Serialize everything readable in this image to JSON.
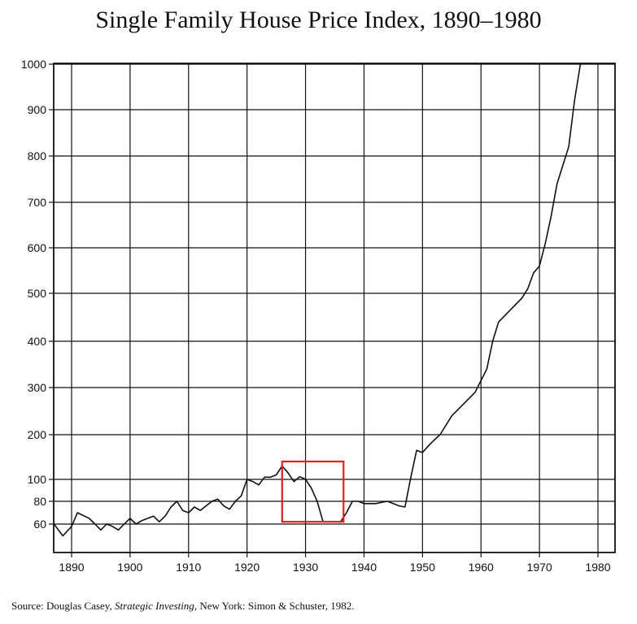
{
  "title": "Single Family House Price Index, 1890–1980",
  "source": {
    "prefix": "Source:  Douglas Casey, ",
    "book": "Strategic Investing",
    "suffix": ", New York: Simon & Schuster, 1982."
  },
  "chart_data": {
    "type": "line",
    "title": "Single Family House Price Index, 1890–1980",
    "xlabel": "",
    "ylabel": "",
    "xlim": [
      1887,
      1982
    ],
    "x_ticks": [
      1890,
      1900,
      1910,
      1920,
      1930,
      1940,
      1950,
      1960,
      1970,
      1980
    ],
    "y_ticks": [
      60,
      80,
      100,
      200,
      300,
      400,
      500,
      600,
      700,
      800,
      900,
      1000
    ],
    "y_scale": "nonuniform (compressed below 100)",
    "grid": true,
    "legend": "none",
    "highlight_box": {
      "x_range": [
        1926,
        1936.5
      ],
      "y_range": [
        62,
        140
      ],
      "color": "#e02020"
    },
    "series": [
      {
        "x": [
          1887,
          1888.5,
          1890,
          1891,
          1893,
          1894,
          1895,
          1896,
          1897,
          1898,
          1899,
          1900,
          1901,
          1902,
          1904,
          1905,
          1906,
          1907,
          1908,
          1909,
          1910,
          1911,
          1912,
          1913,
          1914,
          1915,
          1916,
          1917,
          1918,
          1919,
          1920,
          1921,
          1922,
          1923,
          1924,
          1925,
          1926,
          1927,
          1928,
          1929,
          1930,
          1931,
          1932,
          1933,
          1934,
          1935,
          1936,
          1937,
          1938,
          1939,
          1940,
          1941,
          1942,
          1943,
          1944,
          1945,
          1946,
          1947,
          1948,
          1949,
          1950,
          1951,
          1952,
          1953,
          1955,
          1957,
          1959,
          1960,
          1961,
          1962,
          1963,
          1965,
          1967,
          1968,
          1969,
          1970,
          1971,
          1972,
          1973,
          1974,
          1975,
          1976,
          1977,
          1978
        ],
        "values": [
          60,
          50,
          58,
          70,
          65,
          60,
          55,
          60,
          58,
          55,
          60,
          65,
          60,
          63,
          67,
          62,
          67,
          75,
          80,
          72,
          70,
          75,
          72,
          76,
          80,
          82,
          76,
          73,
          80,
          85,
          100,
          98,
          95,
          105,
          105,
          110,
          130,
          115,
          98,
          106,
          100,
          92,
          80,
          62,
          62,
          62,
          62,
          70,
          80,
          80,
          78,
          78,
          78,
          79,
          80,
          78,
          76,
          75,
          105,
          165,
          160,
          175,
          188,
          200,
          240,
          265,
          290,
          315,
          340,
          400,
          440,
          465,
          490,
          510,
          545,
          560,
          610,
          670,
          740,
          780,
          820,
          920,
          1000,
          1050
        ]
      }
    ]
  }
}
